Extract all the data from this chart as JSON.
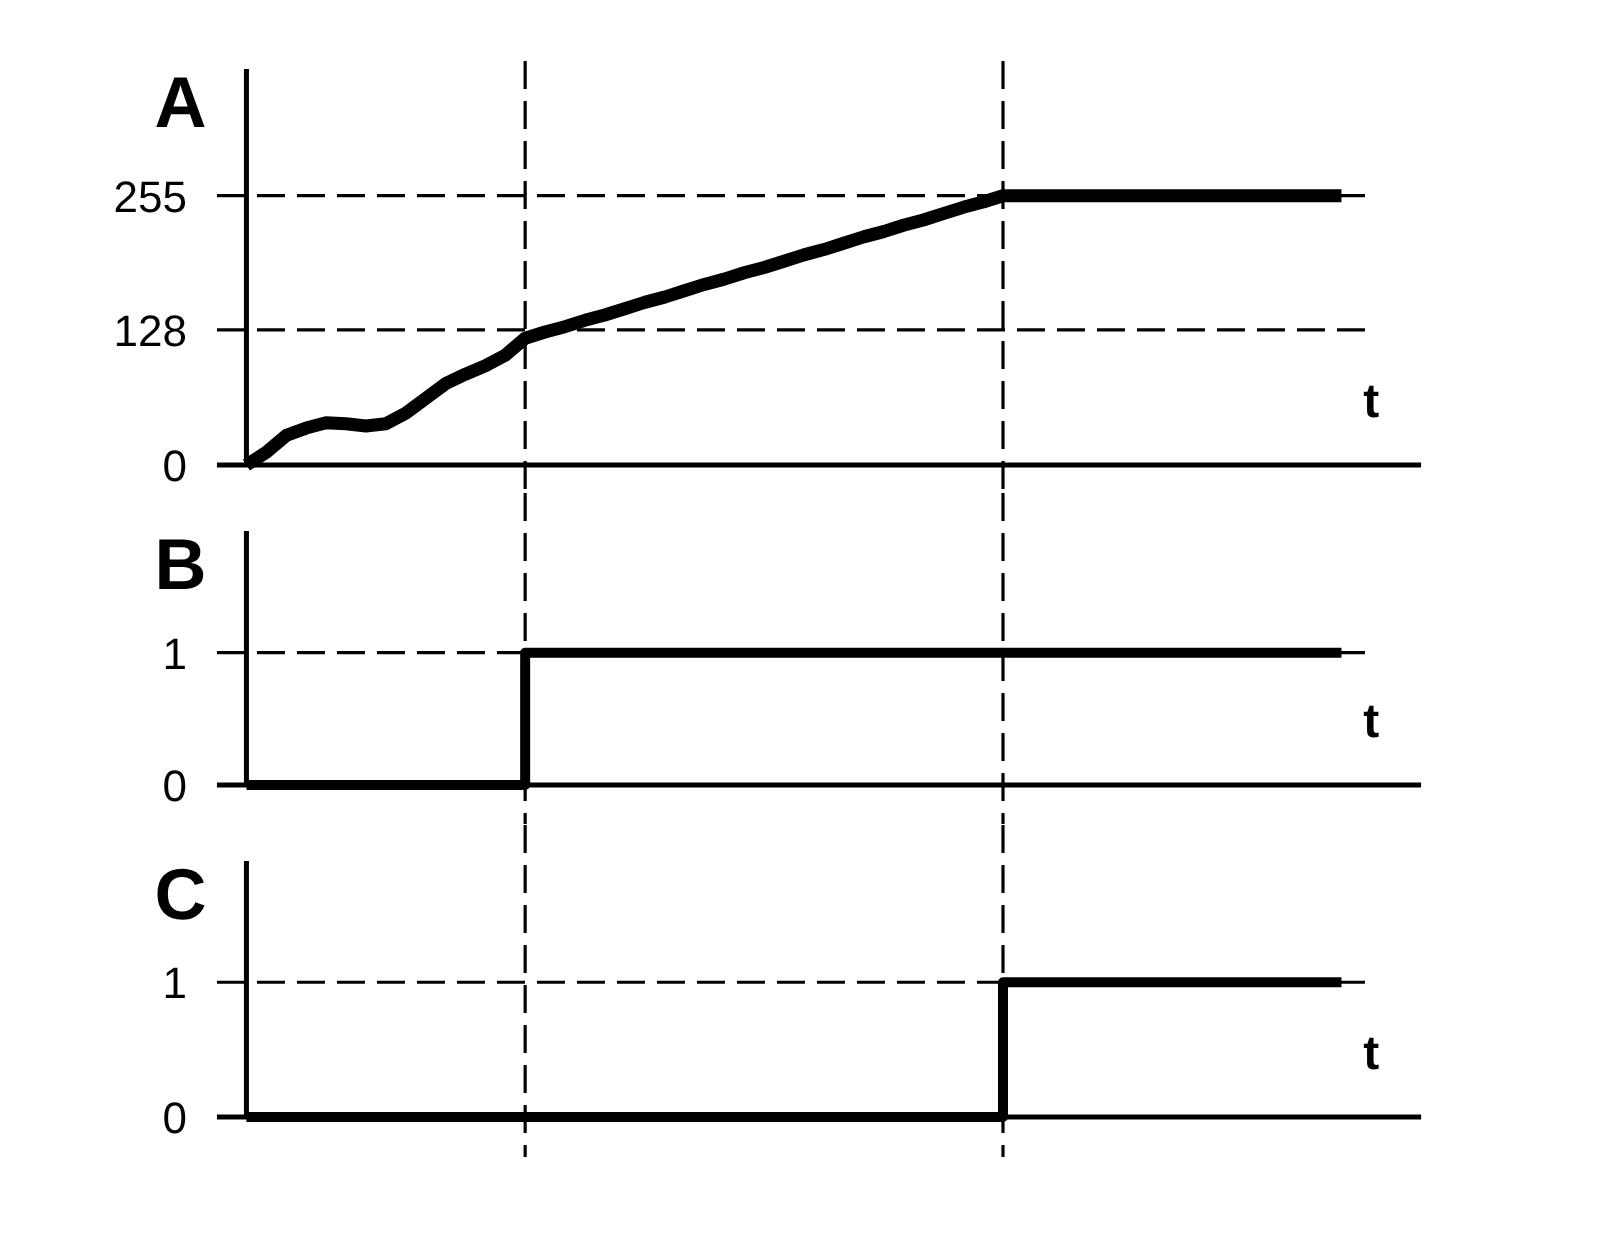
{
  "chart_data": [
    {
      "type": "line",
      "ylabel": "A",
      "xlabel": "t",
      "tick_labels": "y",
      "grid": false,
      "ylim": [
        0,
        375
      ],
      "yticks": [
        0,
        128,
        255
      ],
      "categories": [
        null,
        null,
        null,
        null,
        null,
        null,
        null,
        null,
        null,
        null,
        null,
        null,
        null,
        null,
        null,
        null,
        null,
        null,
        null,
        null,
        null,
        null,
        null,
        null,
        null,
        null,
        null,
        null,
        null,
        null,
        null,
        null,
        null,
        null,
        null,
        null,
        null,
        null,
        null,
        null,
        null,
        null,
        null,
        null,
        null,
        null,
        null,
        null,
        null,
        null,
        null,
        null,
        null,
        null,
        null,
        null
      ],
      "series": [
        {
          "color": "#000000",
          "values": [
            0,
            12,
            28,
            35,
            40,
            39,
            37,
            39,
            49,
            63,
            77,
            86,
            94,
            104,
            120,
            126,
            131,
            137,
            142,
            148,
            154,
            159,
            165,
            171,
            176,
            182,
            187,
            193,
            199,
            204,
            210,
            216,
            221,
            227,
            232,
            238,
            244,
            249,
            255,
            255,
            255,
            255,
            255,
            255,
            255,
            255,
            255,
            255,
            255,
            255,
            255,
            255,
            255,
            255,
            255,
            255
          ]
        }
      ],
      "ref_lines": [
        {
          "axis": "y",
          "value": 128,
          "line_style": "dashed",
          "color": "#000000"
        },
        {
          "axis": "y",
          "value": 255,
          "line_style": "dashed",
          "color": "#000000"
        }
      ]
    },
    {
      "type": "step",
      "ylabel": "B",
      "xlabel": "t",
      "tick_labels": "y",
      "grid": false,
      "ylim": [
        0,
        1.92
      ],
      "yticks": [
        0,
        1
      ],
      "categories": [
        null,
        null,
        null,
        null,
        null,
        null,
        null,
        null,
        null,
        null,
        null,
        null,
        null,
        null,
        null,
        null,
        null,
        null,
        null,
        null,
        null,
        null,
        null,
        null,
        null,
        null,
        null,
        null,
        null,
        null,
        null,
        null,
        null,
        null,
        null,
        null,
        null,
        null,
        null,
        null,
        null,
        null,
        null,
        null,
        null,
        null,
        null,
        null,
        null,
        null,
        null,
        null,
        null,
        null,
        null,
        null
      ],
      "series": [
        {
          "color": "#000000",
          "values": [
            0,
            0,
            0,
            0,
            0,
            0,
            0,
            0,
            0,
            0,
            0,
            0,
            0,
            0,
            1,
            1,
            1,
            1,
            1,
            1,
            1,
            1,
            1,
            1,
            1,
            1,
            1,
            1,
            1,
            1,
            1,
            1,
            1,
            1,
            1,
            1,
            1,
            1,
            1,
            1,
            1,
            1,
            1,
            1,
            1,
            1,
            1,
            1,
            1,
            1,
            1,
            1,
            1,
            1,
            1,
            1
          ]
        }
      ],
      "ref_lines": [
        {
          "axis": "y",
          "value": 1,
          "line_style": "dashed",
          "color": "#000000"
        }
      ]
    },
    {
      "type": "step",
      "ylabel": "C",
      "xlabel": "t",
      "tick_labels": "y",
      "grid": false,
      "ylim": [
        0,
        1.9
      ],
      "yticks": [
        0,
        1
      ],
      "categories": [
        null,
        null,
        null,
        null,
        null,
        null,
        null,
        null,
        null,
        null,
        null,
        null,
        null,
        null,
        null,
        null,
        null,
        null,
        null,
        null,
        null,
        null,
        null,
        null,
        null,
        null,
        null,
        null,
        null,
        null,
        null,
        null,
        null,
        null,
        null,
        null,
        null,
        null,
        null,
        null,
        null,
        null,
        null,
        null,
        null,
        null,
        null,
        null,
        null,
        null,
        null,
        null,
        null,
        null,
        null,
        null
      ],
      "series": [
        {
          "color": "#000000",
          "values": [
            0,
            0,
            0,
            0,
            0,
            0,
            0,
            0,
            0,
            0,
            0,
            0,
            0,
            0,
            0,
            0,
            0,
            0,
            0,
            0,
            0,
            0,
            0,
            0,
            0,
            0,
            0,
            0,
            0,
            0,
            0,
            0,
            0,
            0,
            0,
            0,
            0,
            0,
            1,
            1,
            1,
            1,
            1,
            1,
            1,
            1,
            1,
            1,
            1,
            1,
            1,
            1,
            1,
            1,
            1,
            1
          ]
        }
      ],
      "ref_lines": [
        {
          "axis": "y",
          "value": 1,
          "line_style": "dashed",
          "color": "#000000"
        }
      ]
    }
  ]
}
